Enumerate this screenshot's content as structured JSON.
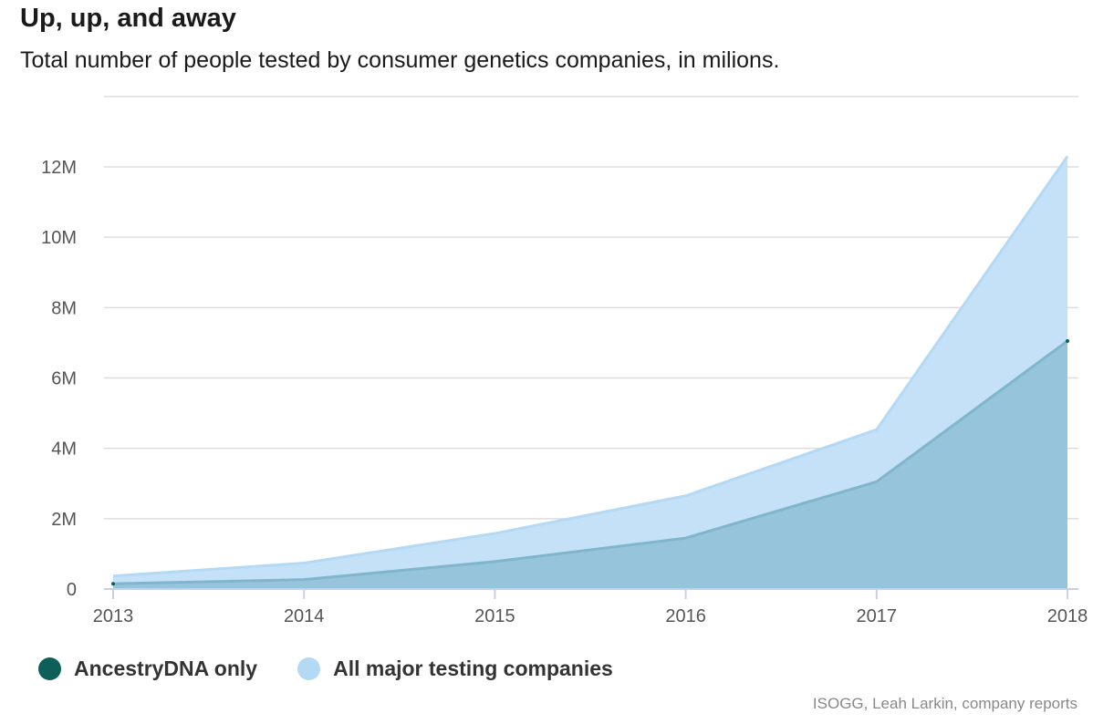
{
  "title": "Up, up, and away",
  "subtitle": "Total number of people tested by consumer genetics companies, in milions.",
  "source": "ISOGG, Leah Larkin, company reports",
  "colors": {
    "ancestry": "#0e5f5a",
    "all_companies": "#b3d9f5",
    "all_area": "#c4e1f8",
    "ancestry_area": "#96c4da",
    "grid": "#dddddd",
    "axis": "#c9d0e6"
  },
  "chart_data": {
    "type": "area",
    "title": "Up, up, and away",
    "subtitle": "Total number of people tested by consumer genetics companies, in milions.",
    "x": [
      "2013",
      "2014",
      "2015",
      "2016",
      "2017",
      "2018"
    ],
    "ylim": [
      0,
      14000000
    ],
    "y_ticks": [
      0,
      2000000,
      4000000,
      6000000,
      8000000,
      10000000,
      12000000
    ],
    "y_tick_labels": [
      "0",
      "2M",
      "4M",
      "6M",
      "8M",
      "10M",
      "12M"
    ],
    "grid": true,
    "legend_position": "bottom-left",
    "series": [
      {
        "name": "AncestryDNA only",
        "values": [
          150000,
          270000,
          780000,
          1450000,
          3050000,
          7050000
        ]
      },
      {
        "name": "All major testing companies",
        "values": [
          370000,
          740000,
          1580000,
          2650000,
          4530000,
          12300000
        ]
      }
    ]
  }
}
